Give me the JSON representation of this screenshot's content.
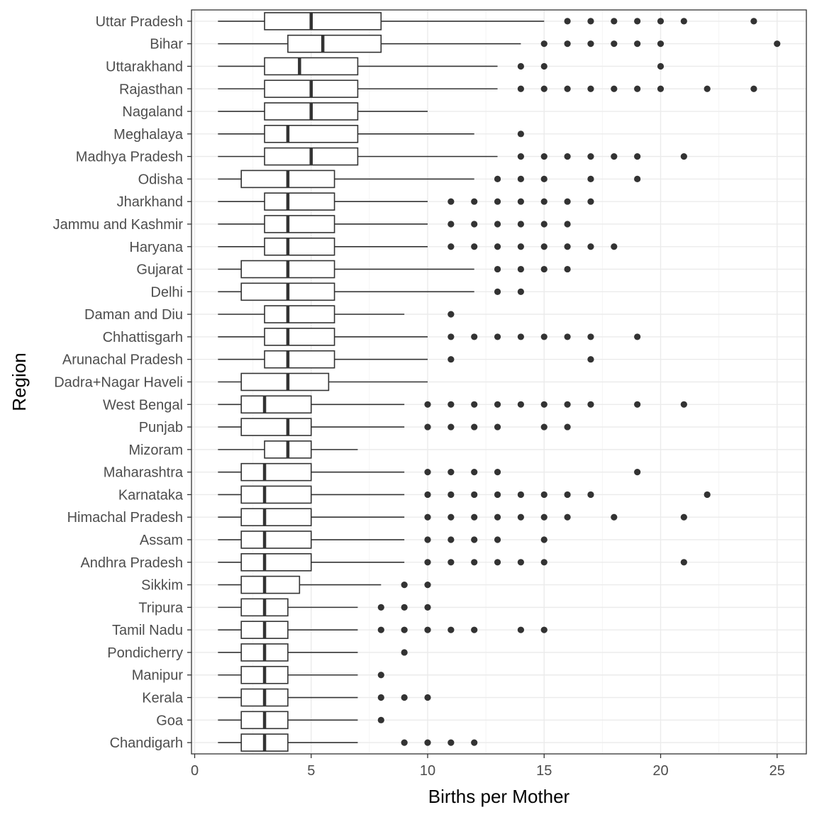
{
  "chart_data": {
    "type": "boxplot",
    "orientation": "horizontal",
    "xlabel": "Births per Mother",
    "ylabel": "Region",
    "xlim": [
      0,
      26
    ],
    "x_ticks": [
      0,
      5,
      10,
      15,
      20,
      25
    ],
    "grid": true,
    "legend": "none",
    "colors": {
      "box_stroke": "#333333",
      "outlier": "#333333",
      "grid_major": "#ebebeb",
      "grid_minor": "#f4f4f4",
      "panel_border": "#333333"
    },
    "regions": [
      {
        "name": "Uttar Pradesh",
        "min": 1,
        "q1": 3,
        "median": 5,
        "q3": 8,
        "max": 15,
        "outliers": [
          16,
          17,
          18,
          19,
          20,
          21,
          24
        ]
      },
      {
        "name": "Bihar",
        "min": 1,
        "q1": 4,
        "median": 5.5,
        "q3": 8,
        "max": 14,
        "outliers": [
          15,
          16,
          17,
          18,
          19,
          20,
          25
        ]
      },
      {
        "name": "Uttarakhand",
        "min": 1,
        "q1": 3,
        "median": 4.5,
        "q3": 7,
        "max": 13,
        "outliers": [
          14,
          15,
          20
        ]
      },
      {
        "name": "Rajasthan",
        "min": 1,
        "q1": 3,
        "median": 5,
        "q3": 7,
        "max": 13,
        "outliers": [
          14,
          15,
          16,
          17,
          18,
          19,
          20,
          22,
          24
        ]
      },
      {
        "name": "Nagaland",
        "min": 1,
        "q1": 3,
        "median": 5,
        "q3": 7,
        "max": 10,
        "outliers": []
      },
      {
        "name": "Meghalaya",
        "min": 1,
        "q1": 3,
        "median": 4,
        "q3": 7,
        "max": 12,
        "outliers": [
          14
        ]
      },
      {
        "name": "Madhya Pradesh",
        "min": 1,
        "q1": 3,
        "median": 5,
        "q3": 7,
        "max": 13,
        "outliers": [
          14,
          15,
          16,
          17,
          18,
          19,
          21
        ]
      },
      {
        "name": "Odisha",
        "min": 1,
        "q1": 2,
        "median": 4,
        "q3": 6,
        "max": 12,
        "outliers": [
          13,
          14,
          15,
          17,
          19
        ]
      },
      {
        "name": "Jharkhand",
        "min": 1,
        "q1": 3,
        "median": 4,
        "q3": 6,
        "max": 10,
        "outliers": [
          11,
          12,
          13,
          14,
          15,
          16,
          17
        ]
      },
      {
        "name": "Jammu and Kashmir",
        "min": 1,
        "q1": 3,
        "median": 4,
        "q3": 6,
        "max": 10,
        "outliers": [
          11,
          12,
          13,
          14,
          15,
          16
        ]
      },
      {
        "name": "Haryana",
        "min": 1,
        "q1": 3,
        "median": 4,
        "q3": 6,
        "max": 10,
        "outliers": [
          11,
          12,
          13,
          14,
          15,
          16,
          17,
          18
        ]
      },
      {
        "name": "Gujarat",
        "min": 1,
        "q1": 2,
        "median": 4,
        "q3": 6,
        "max": 12,
        "outliers": [
          13,
          14,
          15,
          16
        ]
      },
      {
        "name": "Delhi",
        "min": 1,
        "q1": 2,
        "median": 4,
        "q3": 6,
        "max": 12,
        "outliers": [
          13,
          14
        ]
      },
      {
        "name": "Daman and Diu",
        "min": 1,
        "q1": 3,
        "median": 4,
        "q3": 6,
        "max": 9,
        "outliers": [
          11
        ]
      },
      {
        "name": "Chhattisgarh",
        "min": 1,
        "q1": 3,
        "median": 4,
        "q3": 6,
        "max": 10,
        "outliers": [
          11,
          12,
          13,
          14,
          15,
          16,
          17,
          19
        ]
      },
      {
        "name": "Arunachal Pradesh",
        "min": 1,
        "q1": 3,
        "median": 4,
        "q3": 6,
        "max": 10,
        "outliers": [
          11,
          17
        ]
      },
      {
        "name": "Dadra+Nagar Haveli",
        "min": 1,
        "q1": 2,
        "median": 4,
        "q3": 5.75,
        "max": 10,
        "outliers": []
      },
      {
        "name": "West Bengal",
        "min": 1,
        "q1": 2,
        "median": 3,
        "q3": 5,
        "max": 9,
        "outliers": [
          10,
          11,
          12,
          13,
          14,
          15,
          16,
          17,
          19,
          21
        ]
      },
      {
        "name": "Punjab",
        "min": 1,
        "q1": 2,
        "median": 4,
        "q3": 5,
        "max": 9,
        "outliers": [
          10,
          11,
          12,
          13,
          15,
          16
        ]
      },
      {
        "name": "Mizoram",
        "min": 1,
        "q1": 3,
        "median": 4,
        "q3": 5,
        "max": 7,
        "outliers": []
      },
      {
        "name": "Maharashtra",
        "min": 1,
        "q1": 2,
        "median": 3,
        "q3": 5,
        "max": 9,
        "outliers": [
          10,
          11,
          12,
          13,
          19
        ]
      },
      {
        "name": "Karnataka",
        "min": 1,
        "q1": 2,
        "median": 3,
        "q3": 5,
        "max": 9,
        "outliers": [
          10,
          11,
          12,
          13,
          14,
          15,
          16,
          17,
          22
        ]
      },
      {
        "name": "Himachal Pradesh",
        "min": 1,
        "q1": 2,
        "median": 3,
        "q3": 5,
        "max": 9,
        "outliers": [
          10,
          11,
          12,
          13,
          14,
          15,
          16,
          18,
          21
        ]
      },
      {
        "name": "Assam",
        "min": 1,
        "q1": 2,
        "median": 3,
        "q3": 5,
        "max": 9,
        "outliers": [
          10,
          11,
          12,
          13,
          15
        ]
      },
      {
        "name": "Andhra Pradesh",
        "min": 1,
        "q1": 2,
        "median": 3,
        "q3": 5,
        "max": 9,
        "outliers": [
          10,
          11,
          12,
          13,
          14,
          15,
          21
        ]
      },
      {
        "name": "Sikkim",
        "min": 1,
        "q1": 2,
        "median": 3,
        "q3": 4.5,
        "max": 8,
        "outliers": [
          9,
          10
        ]
      },
      {
        "name": "Tripura",
        "min": 1,
        "q1": 2,
        "median": 3,
        "q3": 4,
        "max": 7,
        "outliers": [
          8,
          9,
          10
        ]
      },
      {
        "name": "Tamil Nadu",
        "min": 1,
        "q1": 2,
        "median": 3,
        "q3": 4,
        "max": 7,
        "outliers": [
          8,
          9,
          10,
          11,
          12,
          14,
          15
        ]
      },
      {
        "name": "Pondicherry",
        "min": 1,
        "q1": 2,
        "median": 3,
        "q3": 4,
        "max": 7,
        "outliers": [
          9
        ]
      },
      {
        "name": "Manipur",
        "min": 1,
        "q1": 2,
        "median": 3,
        "q3": 4,
        "max": 7,
        "outliers": [
          8
        ]
      },
      {
        "name": "Kerala",
        "min": 1,
        "q1": 2,
        "median": 3,
        "q3": 4,
        "max": 7,
        "outliers": [
          8,
          9,
          10
        ]
      },
      {
        "name": "Goa",
        "min": 1,
        "q1": 2,
        "median": 3,
        "q3": 4,
        "max": 7,
        "outliers": [
          8
        ]
      },
      {
        "name": "Chandigarh",
        "min": 1,
        "q1": 2,
        "median": 3,
        "q3": 4,
        "max": 7,
        "outliers": [
          9,
          10,
          11,
          12
        ]
      }
    ]
  }
}
